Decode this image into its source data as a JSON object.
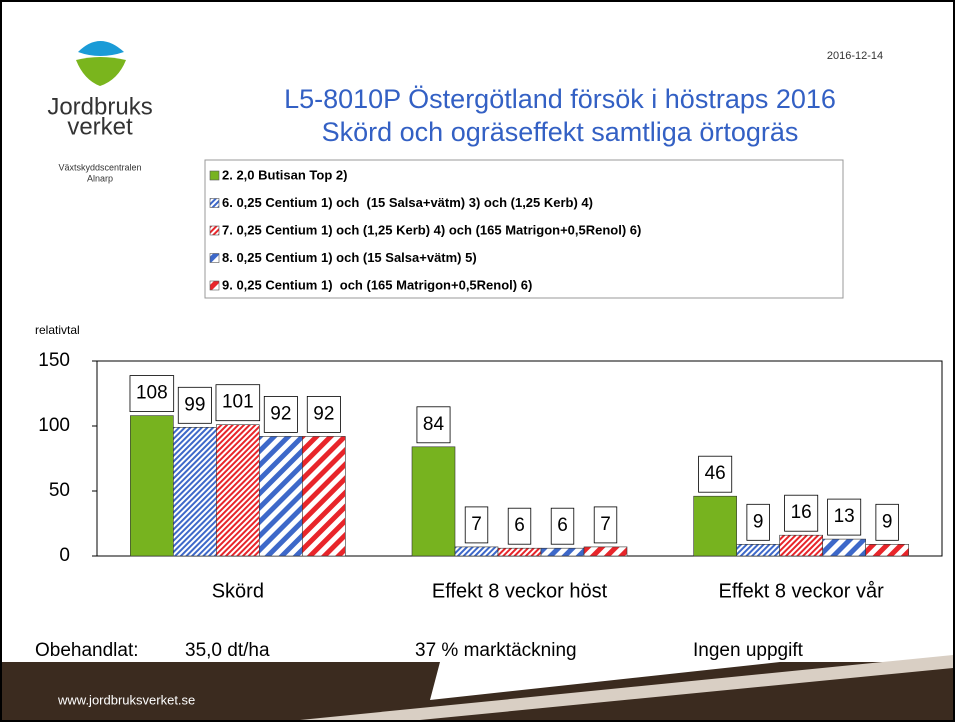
{
  "header": {
    "logo": [
      "Jordbruks",
      "verket"
    ],
    "unit": [
      "Växtskyddscentralen",
      "Alnarp"
    ],
    "date": "2016-12-14"
  },
  "chart_data": {
    "type": "bar",
    "title": [
      "L5-8010P Östergötland försök i höstraps 2016",
      "Skörd och ogräseffekt samtliga örtogräs"
    ],
    "y_label": "relativtal",
    "categories": [
      "Skörd",
      "Effekt 8 veckor höst",
      "Effekt 8 veckor vår"
    ],
    "series": [
      {
        "name": "2. 2,0 Butisan Top 2)",
        "color": "#77b31f",
        "fill": "solid",
        "values": [
          108,
          84,
          46
        ]
      },
      {
        "name": "6. 0,25 Centium 1) och  (15 Salsa+vätm) 3) och (1,25 Kerb) 4)",
        "color": "#3d68c9",
        "fill": "hatch-fine",
        "values": [
          99,
          7,
          9
        ]
      },
      {
        "name": "7. 0,25 Centium 1) och (1,25 Kerb) 4) och (165 Matrigon+0,5Renol) 6)",
        "color": "#e8252a",
        "fill": "hatch-fine",
        "values": [
          101,
          6,
          16
        ]
      },
      {
        "name": "8. 0,25 Centium 1) och (15 Salsa+vätm) 5)",
        "color": "#3d68c9",
        "fill": "hatch-wide",
        "values": [
          92,
          6,
          13
        ]
      },
      {
        "name": "9. 0,25 Centium 1)  och (165 Matrigon+0,5Renol) 6)",
        "color": "#e8252a",
        "fill": "hatch-wide",
        "values": [
          92,
          7,
          9
        ]
      }
    ],
    "ylim": [
      0,
      150
    ],
    "yticks": [
      0,
      50,
      100,
      150
    ],
    "grid": false
  },
  "notes": [
    "Obehandlat:",
    "35,0 dt/ha",
    "37 % marktäckning",
    "Ingen uppgift"
  ],
  "footer": "www.jordbruksverket.se"
}
